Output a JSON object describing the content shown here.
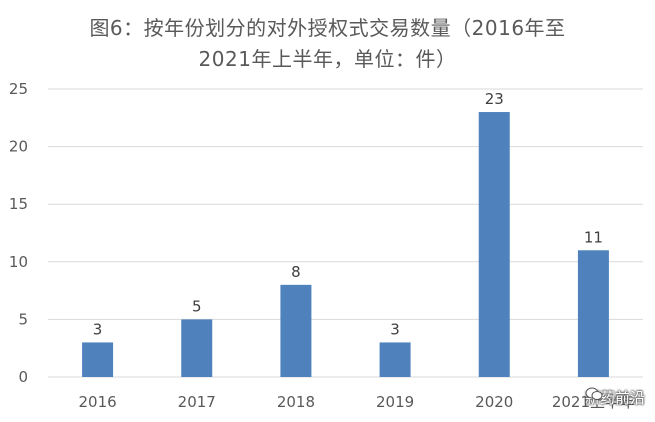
{
  "chart_data": {
    "type": "bar",
    "title_line1": "图6：按年份划分的对外授权式交易数量（2016年至",
    "title_line2": "2021年上半年，单位：件）",
    "categories": [
      "2016",
      "2017",
      "2018",
      "2019",
      "2020",
      "2021上半年"
    ],
    "values": [
      3,
      5,
      8,
      3,
      23,
      11
    ],
    "ylim": [
      0,
      25
    ],
    "yticks": [
      0,
      5,
      10,
      15,
      20,
      25
    ],
    "grid": true,
    "bar_color": "#4F81BD",
    "grid_color": "#D9D9D9"
  },
  "watermark": {
    "icon": "wechat-icon",
    "text": "新药前沿"
  }
}
